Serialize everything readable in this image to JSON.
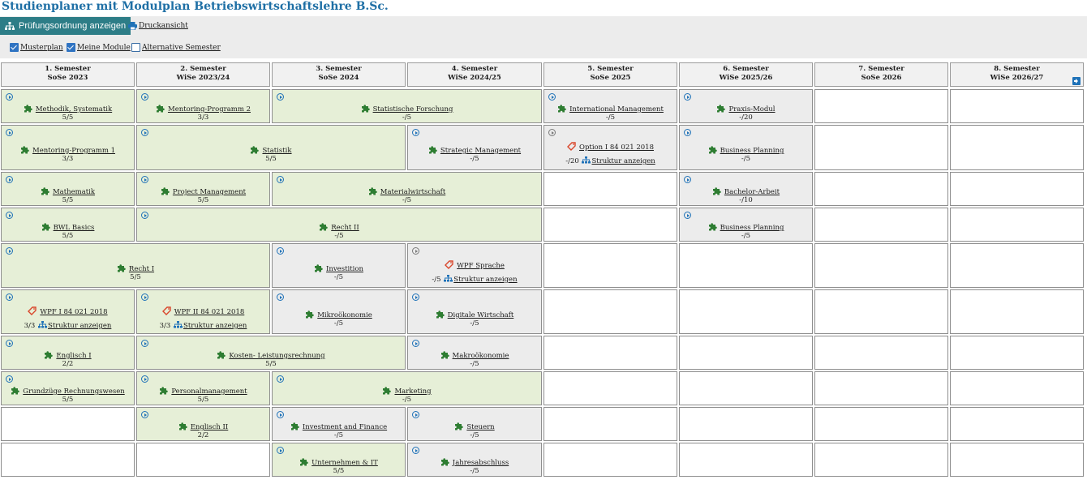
{
  "title": "Studienplaner mit Modulplan Betriebswirtschaftslehre B.Sc.",
  "toolbar": {
    "pruefungsordnung": "Prüfungsordnung anzeigen",
    "druckansicht": "Druckansicht",
    "checkboxes": [
      {
        "label": "Musterplan",
        "checked": true
      },
      {
        "label": "Meine Module",
        "checked": true
      },
      {
        "label": "Alternative Semester",
        "checked": false
      }
    ]
  },
  "colors": {
    "accent": "#2d7d87",
    "title": "#1e6fa5",
    "module_green": "#e6efd7",
    "module_grey": "#ececec",
    "icon_blue": "#1f72b8",
    "puzzle_green": "#2e7d32",
    "tag_red": "#d9462b"
  },
  "semesters": [
    {
      "label": "1. Semester",
      "term": "SoSe 2023"
    },
    {
      "label": "2. Semester",
      "term": "WiSe 2023/24"
    },
    {
      "label": "3. Semester",
      "term": "SoSe 2024"
    },
    {
      "label": "4. Semester",
      "term": "WiSe 2024/25"
    },
    {
      "label": "5. Semester",
      "term": "SoSe 2025"
    },
    {
      "label": "6. Semester",
      "term": "WiSe 2025/26"
    },
    {
      "label": "7. Semester",
      "term": "SoSe 2026"
    },
    {
      "label": "8. Semester",
      "term": "WiSe 2026/27"
    }
  ],
  "modules": [
    {
      "name": "Methodik, Systematik",
      "credits": "5/5",
      "icon": "puzzle-icon"
    },
    {
      "name": "Mentoring-Programm 2",
      "credits": "3/3",
      "icon": "puzzle-icon"
    },
    {
      "name": "Statistische Forschung",
      "credits": "-/5",
      "icon": "puzzle-icon"
    },
    {
      "name": "International Management",
      "credits": "-/5",
      "icon": "puzzle-icon"
    },
    {
      "name": "Praxis-Modul",
      "credits": "-/20",
      "icon": "puzzle-icon"
    },
    {
      "name": "Mentoring-Programm 1",
      "credits": "3/3",
      "icon": "puzzle-icon"
    },
    {
      "name": "Statistik",
      "credits": "5/5",
      "icon": "puzzle-icon"
    },
    {
      "name": "Strategic Management",
      "credits": "-/5",
      "icon": "puzzle-icon"
    },
    {
      "name": "Option I 84 021 2018",
      "credits": "-/20",
      "icon": "tag-icon",
      "struktur": "Struktur anzeigen"
    },
    {
      "name": "Business Planning",
      "credits": "-/5",
      "icon": "puzzle-icon"
    },
    {
      "name": "Mathematik",
      "credits": "5/5",
      "icon": "puzzle-icon"
    },
    {
      "name": "Project Management",
      "credits": "5/5",
      "icon": "puzzle-icon"
    },
    {
      "name": "Materialwirtschaft",
      "credits": "-/5",
      "icon": "puzzle-icon"
    },
    {
      "name": "Bachelor-Arbeit",
      "credits": "-/10",
      "icon": "puzzle-icon"
    },
    {
      "name": "BWL Basics",
      "credits": "5/5",
      "icon": "puzzle-icon"
    },
    {
      "name": "Recht II",
      "credits": "-/5",
      "icon": "puzzle-icon"
    },
    {
      "name": "Business Planning",
      "credits": "-/5",
      "icon": "puzzle-icon"
    },
    {
      "name": "Recht I",
      "credits": "5/5",
      "icon": "puzzle-icon"
    },
    {
      "name": "Investition",
      "credits": "-/5",
      "icon": "puzzle-icon"
    },
    {
      "name": "WPF Sprache",
      "credits": "-/5",
      "icon": "tag-icon",
      "struktur": "Struktur anzeigen"
    },
    {
      "name": "WPF I 84 021 2018",
      "credits": "3/3",
      "icon": "tag-icon",
      "struktur": "Struktur anzeigen"
    },
    {
      "name": "WPF II 84 021 2018",
      "credits": "3/3",
      "icon": "tag-icon",
      "struktur": "Struktur anzeigen"
    },
    {
      "name": "Mikroökonomie",
      "credits": "-/5",
      "icon": "puzzle-icon"
    },
    {
      "name": "Digitale Wirtschaft",
      "credits": "-/5",
      "icon": "puzzle-icon"
    },
    {
      "name": "Englisch I",
      "credits": "2/2",
      "icon": "puzzle-icon"
    },
    {
      "name": "Kosten- Leistungsrechnung",
      "credits": "5/5",
      "icon": "puzzle-icon"
    },
    {
      "name": "Makroökonomie",
      "credits": "-/5",
      "icon": "puzzle-icon"
    },
    {
      "name": "Grundzüge Rechnungswesen",
      "credits": "5/5",
      "icon": "puzzle-icon"
    },
    {
      "name": "Personalmanagement",
      "credits": "5/5",
      "icon": "puzzle-icon"
    },
    {
      "name": "Marketing",
      "credits": "-/5",
      "icon": "puzzle-icon"
    },
    {
      "name": "Englisch II",
      "credits": "2/2",
      "icon": "puzzle-icon"
    },
    {
      "name": "Investment and Finance",
      "credits": "-/5",
      "icon": "puzzle-icon"
    },
    {
      "name": "Steuern",
      "credits": "-/5",
      "icon": "puzzle-icon"
    },
    {
      "name": "Unternehmen & IT",
      "credits": "5/5",
      "icon": "puzzle-icon"
    },
    {
      "name": "Jahresabschluss",
      "credits": "-/5",
      "icon": "puzzle-icon"
    }
  ]
}
